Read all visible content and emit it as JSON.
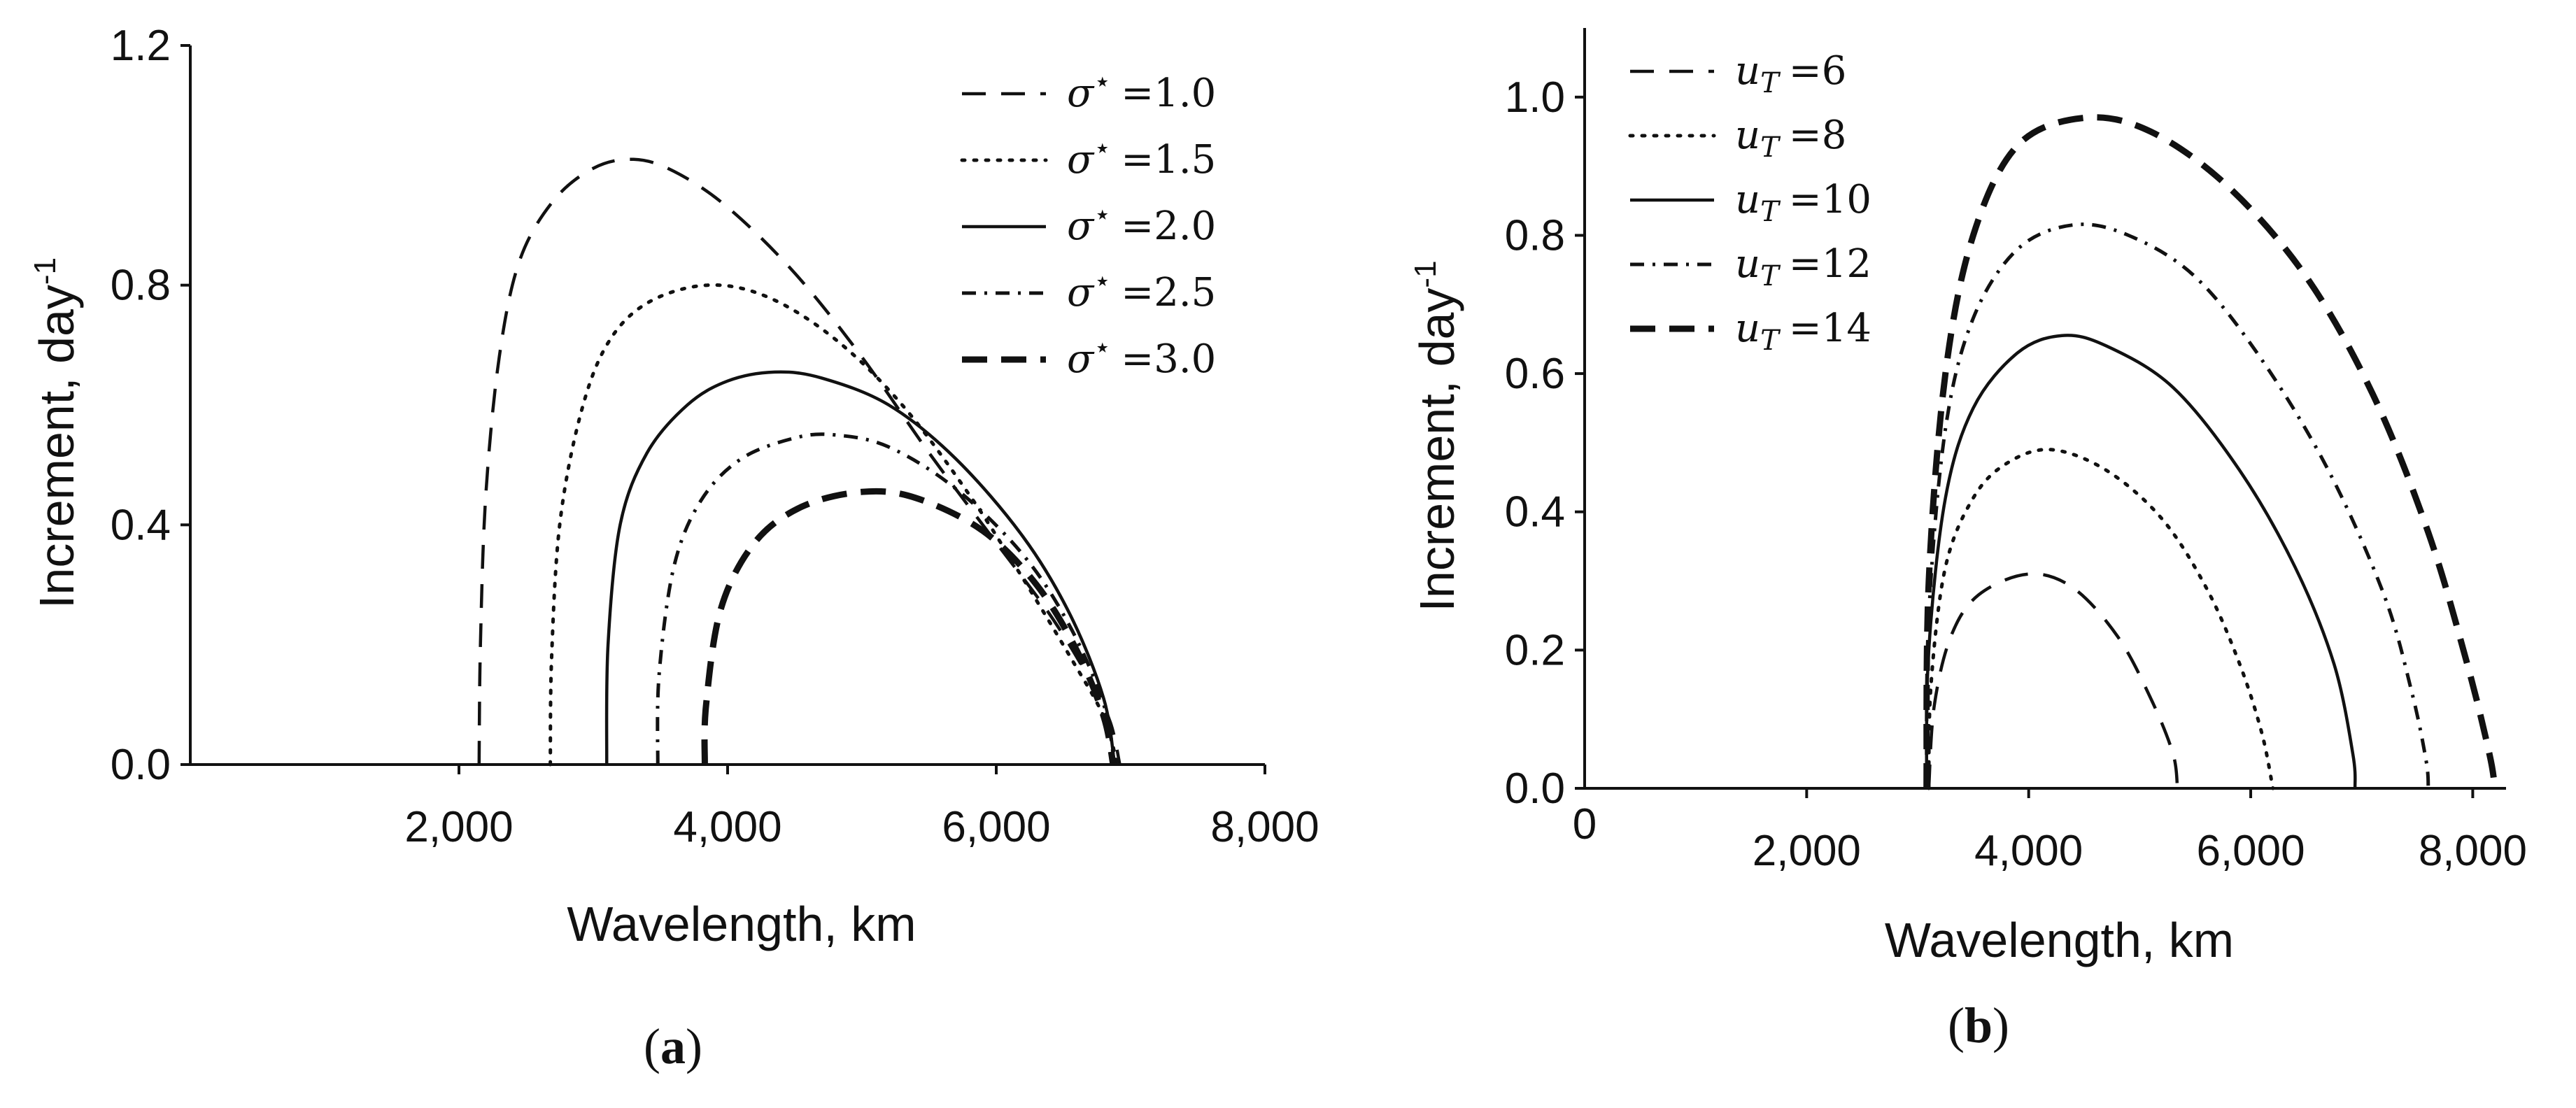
{
  "chart_data": [
    {
      "id": "a",
      "type": "line",
      "panel_label": "a",
      "xlabel": "Wavelength, km",
      "ylabel_main": "Increment, day",
      "ylabel_sup": "-1",
      "xlim": [
        0,
        8000
      ],
      "ylim": [
        0,
        1.2
      ],
      "xticks": [
        {
          "v": 2000,
          "label": "2,000"
        },
        {
          "v": 4000,
          "label": "4,000"
        },
        {
          "v": 6000,
          "label": "6,000"
        },
        {
          "v": 8000,
          "label": "8,000"
        }
      ],
      "yticks": [
        {
          "v": 0.0,
          "label": "0.0"
        },
        {
          "v": 0.4,
          "label": "0.4"
        },
        {
          "v": 0.8,
          "label": "0.8"
        },
        {
          "v": 1.2,
          "label": "1.2"
        }
      ],
      "legend_position": "top-right",
      "series": [
        {
          "name": "σ⋆ =1.0",
          "sym": "σ",
          "star": "⋆",
          "val": "=1.0",
          "style": "dash",
          "points": [
            [
              2150,
              0
            ],
            [
              2160,
              0.2
            ],
            [
              2200,
              0.45
            ],
            [
              2300,
              0.68
            ],
            [
              2450,
              0.84
            ],
            [
              2700,
              0.94
            ],
            [
              3000,
              0.995
            ],
            [
              3300,
              1.01
            ],
            [
              3600,
              0.99
            ],
            [
              4000,
              0.93
            ],
            [
              4500,
              0.82
            ],
            [
              5000,
              0.68
            ],
            [
              5500,
              0.52
            ],
            [
              6000,
              0.37
            ],
            [
              6400,
              0.25
            ],
            [
              6700,
              0.14
            ],
            [
              6850,
              0.07
            ],
            [
              6920,
              0
            ]
          ]
        },
        {
          "name": "σ⋆ =1.5",
          "sym": "σ",
          "star": "⋆",
          "val": "=1.5",
          "style": "dot",
          "points": [
            [
              2680,
              0
            ],
            [
              2690,
              0.18
            ],
            [
              2750,
              0.4
            ],
            [
              2900,
              0.58
            ],
            [
              3100,
              0.7
            ],
            [
              3400,
              0.77
            ],
            [
              3850,
              0.8
            ],
            [
              4300,
              0.78
            ],
            [
              4800,
              0.71
            ],
            [
              5300,
              0.6
            ],
            [
              5800,
              0.45
            ],
            [
              6200,
              0.31
            ],
            [
              6550,
              0.18
            ],
            [
              6800,
              0.08
            ],
            [
              6900,
              0
            ]
          ]
        },
        {
          "name": "σ⋆ =2.0",
          "sym": "σ",
          "star": "⋆",
          "val": "=2.0",
          "style": "solid",
          "points": [
            [
              3100,
              0
            ],
            [
              3110,
              0.2
            ],
            [
              3200,
              0.4
            ],
            [
              3400,
              0.52
            ],
            [
              3700,
              0.6
            ],
            [
              4000,
              0.64
            ],
            [
              4350,
              0.655
            ],
            [
              4700,
              0.645
            ],
            [
              5200,
              0.6
            ],
            [
              5700,
              0.51
            ],
            [
              6200,
              0.38
            ],
            [
              6550,
              0.25
            ],
            [
              6800,
              0.11
            ],
            [
              6880,
              0
            ]
          ]
        },
        {
          "name": "σ⋆ =2.5",
          "sym": "σ",
          "star": "⋆",
          "val": "=2.5",
          "style": "dashdot",
          "points": [
            [
              3480,
              0
            ],
            [
              3490,
              0.15
            ],
            [
              3600,
              0.33
            ],
            [
              3800,
              0.44
            ],
            [
              4100,
              0.51
            ],
            [
              4500,
              0.545
            ],
            [
              4800,
              0.55
            ],
            [
              5200,
              0.53
            ],
            [
              5700,
              0.46
            ],
            [
              6200,
              0.35
            ],
            [
              6550,
              0.23
            ],
            [
              6800,
              0.1
            ],
            [
              6880,
              0
            ]
          ]
        },
        {
          "name": "σ⋆ =3.0",
          "sym": "σ",
          "star": "⋆",
          "val": "=3.0",
          "style": "thickdash",
          "points": [
            [
              3830,
              0
            ],
            [
              3840,
              0.1
            ],
            [
              3950,
              0.26
            ],
            [
              4200,
              0.37
            ],
            [
              4550,
              0.43
            ],
            [
              5000,
              0.455
            ],
            [
              5400,
              0.445
            ],
            [
              5900,
              0.39
            ],
            [
              6300,
              0.3
            ],
            [
              6600,
              0.19
            ],
            [
              6800,
              0.08
            ],
            [
              6870,
              0
            ]
          ]
        }
      ]
    },
    {
      "id": "b",
      "type": "line",
      "panel_label": "b",
      "xlabel": "Wavelength, km",
      "ylabel_main": "Increment, day",
      "ylabel_sup": "-1",
      "xlim": [
        0,
        8300
      ],
      "ylim": [
        0,
        1.1
      ],
      "origin_label": "0",
      "xticks": [
        {
          "v": 2000,
          "label": "2,000"
        },
        {
          "v": 4000,
          "label": "4,000"
        },
        {
          "v": 6000,
          "label": "6,000"
        },
        {
          "v": 8000,
          "label": "8,000"
        }
      ],
      "yticks": [
        {
          "v": 0.0,
          "label": "0.0"
        },
        {
          "v": 0.2,
          "label": "0.2"
        },
        {
          "v": 0.4,
          "label": "0.4"
        },
        {
          "v": 0.6,
          "label": "0.6"
        },
        {
          "v": 0.8,
          "label": "0.8"
        },
        {
          "v": 1.0,
          "label": "1.0"
        }
      ],
      "legend_position": "top-left",
      "series": [
        {
          "name": "uT =6",
          "sym": "u",
          "sub": "T",
          "val": "=6",
          "style": "dash",
          "points": [
            [
              3100,
              0
            ],
            [
              3150,
              0.12
            ],
            [
              3300,
              0.22
            ],
            [
              3550,
              0.28
            ],
            [
              4000,
              0.31
            ],
            [
              4400,
              0.29
            ],
            [
              4800,
              0.22
            ],
            [
              5100,
              0.13
            ],
            [
              5300,
              0.05
            ],
            [
              5340,
              0
            ]
          ]
        },
        {
          "name": "uT =8",
          "sym": "u",
          "sub": "T",
          "val": "=8",
          "style": "dot",
          "points": [
            [
              3100,
              0
            ],
            [
              3120,
              0.15
            ],
            [
              3250,
              0.32
            ],
            [
              3500,
              0.42
            ],
            [
              3800,
              0.47
            ],
            [
              4200,
              0.49
            ],
            [
              4700,
              0.46
            ],
            [
              5200,
              0.39
            ],
            [
              5600,
              0.29
            ],
            [
              5900,
              0.18
            ],
            [
              6100,
              0.08
            ],
            [
              6200,
              0
            ]
          ]
        },
        {
          "name": "uT =10",
          "sym": "u",
          "sub": "T",
          "val": "=10",
          "style": "solid",
          "points": [
            [
              3080,
              0
            ],
            [
              3100,
              0.2
            ],
            [
              3250,
              0.42
            ],
            [
              3500,
              0.55
            ],
            [
              3900,
              0.63
            ],
            [
              4300,
              0.655
            ],
            [
              4700,
              0.64
            ],
            [
              5300,
              0.58
            ],
            [
              5900,
              0.46
            ],
            [
              6400,
              0.32
            ],
            [
              6750,
              0.18
            ],
            [
              6920,
              0.05
            ],
            [
              6940,
              0
            ]
          ]
        },
        {
          "name": "uT =12",
          "sym": "u",
          "sub": "T",
          "val": "=12",
          "style": "dashdot",
          "points": [
            [
              3080,
              0
            ],
            [
              3100,
              0.25
            ],
            [
              3250,
              0.52
            ],
            [
              3500,
              0.68
            ],
            [
              3900,
              0.78
            ],
            [
              4400,
              0.815
            ],
            [
              4900,
              0.8
            ],
            [
              5500,
              0.74
            ],
            [
              6100,
              0.62
            ],
            [
              6700,
              0.46
            ],
            [
              7200,
              0.28
            ],
            [
              7450,
              0.14
            ],
            [
              7580,
              0.04
            ],
            [
              7600,
              0
            ]
          ]
        },
        {
          "name": "uT =14",
          "sym": "u",
          "sub": "T",
          "val": "=14",
          "style": "thickdash",
          "points": [
            [
              3080,
              0
            ],
            [
              3100,
              0.3
            ],
            [
              3250,
              0.6
            ],
            [
              3500,
              0.8
            ],
            [
              3900,
              0.93
            ],
            [
              4500,
              0.97
            ],
            [
              5100,
              0.95
            ],
            [
              5800,
              0.87
            ],
            [
              6500,
              0.74
            ],
            [
              7100,
              0.57
            ],
            [
              7600,
              0.37
            ],
            [
              7950,
              0.18
            ],
            [
              8150,
              0.05
            ],
            [
              8200,
              0
            ]
          ]
        }
      ]
    }
  ]
}
